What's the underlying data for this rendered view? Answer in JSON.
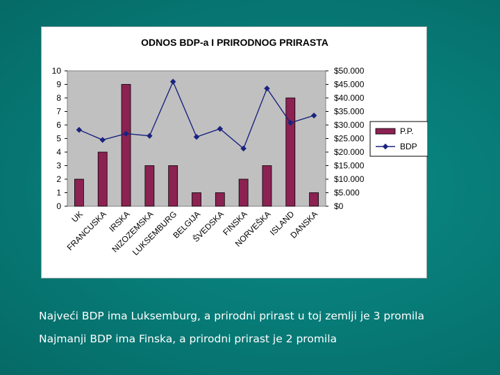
{
  "slide": {
    "captions": [
      "Najveći BDP ima Luksemburg, a prirodni prirast u toj zemlji je 3 promila",
      "Najmanji BDP ima Finska, a prirodni prirast je 2 promila"
    ]
  },
  "chart_data": {
    "type": "bar",
    "title": "ODNOS BDP-a I PRIRODNOG PRIRASTA",
    "categories": [
      "UK",
      "FRANCUSKA",
      "IRSKA",
      "NIZOZEMSKA",
      "LUKSEMBURG",
      "BELGIJA",
      "ŠVEDSKA",
      "FINSKA",
      "NORVEŠKA",
      "ISLAND",
      "DANSKA"
    ],
    "series": [
      {
        "name": "P.P.",
        "type": "bar",
        "axis": "left",
        "color": "#8b2252",
        "values": [
          2,
          4,
          9,
          3,
          3,
          1,
          1,
          2,
          3,
          8,
          1
        ]
      },
      {
        "name": "BDP",
        "type": "line",
        "axis": "right",
        "color": "#1a237e",
        "values": [
          28200,
          24500,
          26800,
          26000,
          46000,
          25600,
          28600,
          21300,
          43500,
          30800,
          33500
        ]
      }
    ],
    "y_left": {
      "min": 0,
      "max": 10,
      "ticks": [
        "0",
        "1",
        "2",
        "3",
        "4",
        "5",
        "6",
        "7",
        "8",
        "9",
        "10"
      ]
    },
    "y_right": {
      "min": 0,
      "max": 50000,
      "ticks": [
        "$0",
        "$5.000",
        "$10.000",
        "$15.000",
        "$20.000",
        "$25.000",
        "$30.000",
        "$35.000",
        "$40.000",
        "$45.000",
        "$50.000"
      ]
    },
    "plot_background": "#c0c0c0",
    "grid": false,
    "legend_position": "right"
  }
}
